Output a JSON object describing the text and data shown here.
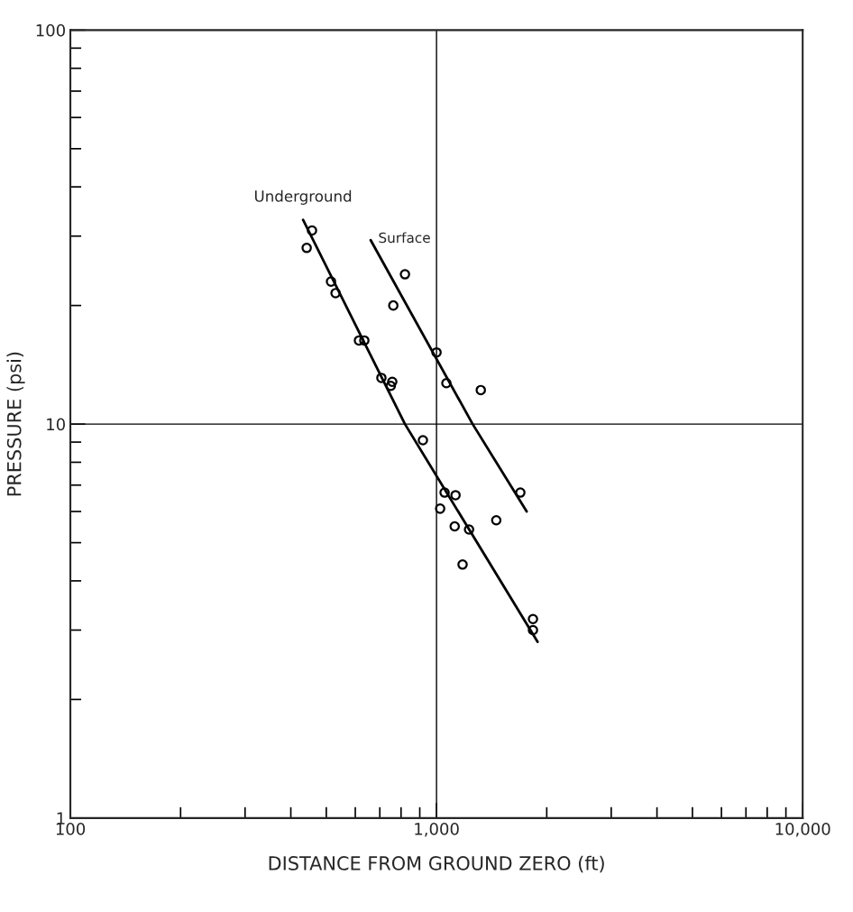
{
  "chart_data": {
    "type": "scatter",
    "log": "xy",
    "xlabel": "DISTANCE FROM GROUND ZERO (ft)",
    "ylabel": "PRESSURE (psi)",
    "xlim": [
      100,
      10000
    ],
    "ylim": [
      1,
      100
    ],
    "xticks": [
      {
        "value": 100,
        "label": "100"
      },
      {
        "value": 200,
        "label": null
      },
      {
        "value": 300,
        "label": null
      },
      {
        "value": 400,
        "label": null
      },
      {
        "value": 500,
        "label": null
      },
      {
        "value": 600,
        "label": null
      },
      {
        "value": 700,
        "label": null
      },
      {
        "value": 800,
        "label": null
      },
      {
        "value": 900,
        "label": null
      },
      {
        "value": 1000,
        "label": "1,000"
      },
      {
        "value": 2000,
        "label": null
      },
      {
        "value": 3000,
        "label": null
      },
      {
        "value": 4000,
        "label": null
      },
      {
        "value": 5000,
        "label": null
      },
      {
        "value": 6000,
        "label": null
      },
      {
        "value": 7000,
        "label": null
      },
      {
        "value": 8000,
        "label": null
      },
      {
        "value": 9000,
        "label": null
      },
      {
        "value": 10000,
        "label": "10,000"
      }
    ],
    "yticks": [
      1,
      {
        "value": 2,
        "label": null
      },
      {
        "value": 3,
        "label": null
      },
      {
        "value": 4,
        "label": null
      },
      {
        "value": 5,
        "label": null
      },
      {
        "value": 6,
        "label": null
      },
      {
        "value": 7,
        "label": null
      },
      {
        "value": 8,
        "label": null
      },
      {
        "value": 9,
        "label": null
      },
      10,
      {
        "value": 20,
        "label": null
      },
      {
        "value": 30,
        "label": null
      },
      {
        "value": 40,
        "label": null
      },
      {
        "value": 50,
        "label": null
      },
      {
        "value": 60,
        "label": null
      },
      {
        "value": 70,
        "label": null
      },
      {
        "value": 80,
        "label": null
      },
      {
        "value": 90,
        "label": null
      },
      100
    ],
    "ref_lines": [
      {
        "axis": "x",
        "value": 1000
      },
      {
        "axis": "y",
        "value": 10
      }
    ],
    "marker": "circle",
    "series": [
      {
        "color": "#000000",
        "x": [
          442,
          457,
          515,
          530,
          614,
          635,
          707,
          757,
          750,
          918,
          1052,
          1127,
          1023,
          1121,
          1227,
          1178,
          1834,
          1834
        ],
        "values": [
          28,
          31,
          23,
          21.5,
          16.3,
          16.3,
          13.1,
          12.8,
          12.5,
          9.1,
          6.7,
          6.6,
          6.1,
          5.5,
          5.4,
          4.4,
          3.2,
          3.0
        ]
      },
      {
        "color": "#000000",
        "x": [
          820,
          762,
          1000,
          1064,
          1321,
          1694,
          1456
        ],
        "values": [
          24,
          20,
          15.2,
          12.7,
          12.2,
          6.7,
          5.7
        ]
      },
      {
        "type": "line",
        "name": "Underground",
        "color": "#000000",
        "marker": "none",
        "x": [
          432,
          820,
          1888
        ],
        "values": [
          33,
          10,
          2.8
        ]
      },
      {
        "type": "line",
        "name": "Surface",
        "color": "#000000",
        "marker": "none",
        "x": [
          661,
          1255,
          1763
        ],
        "values": [
          29.3,
          10,
          6.0
        ]
      }
    ]
  }
}
